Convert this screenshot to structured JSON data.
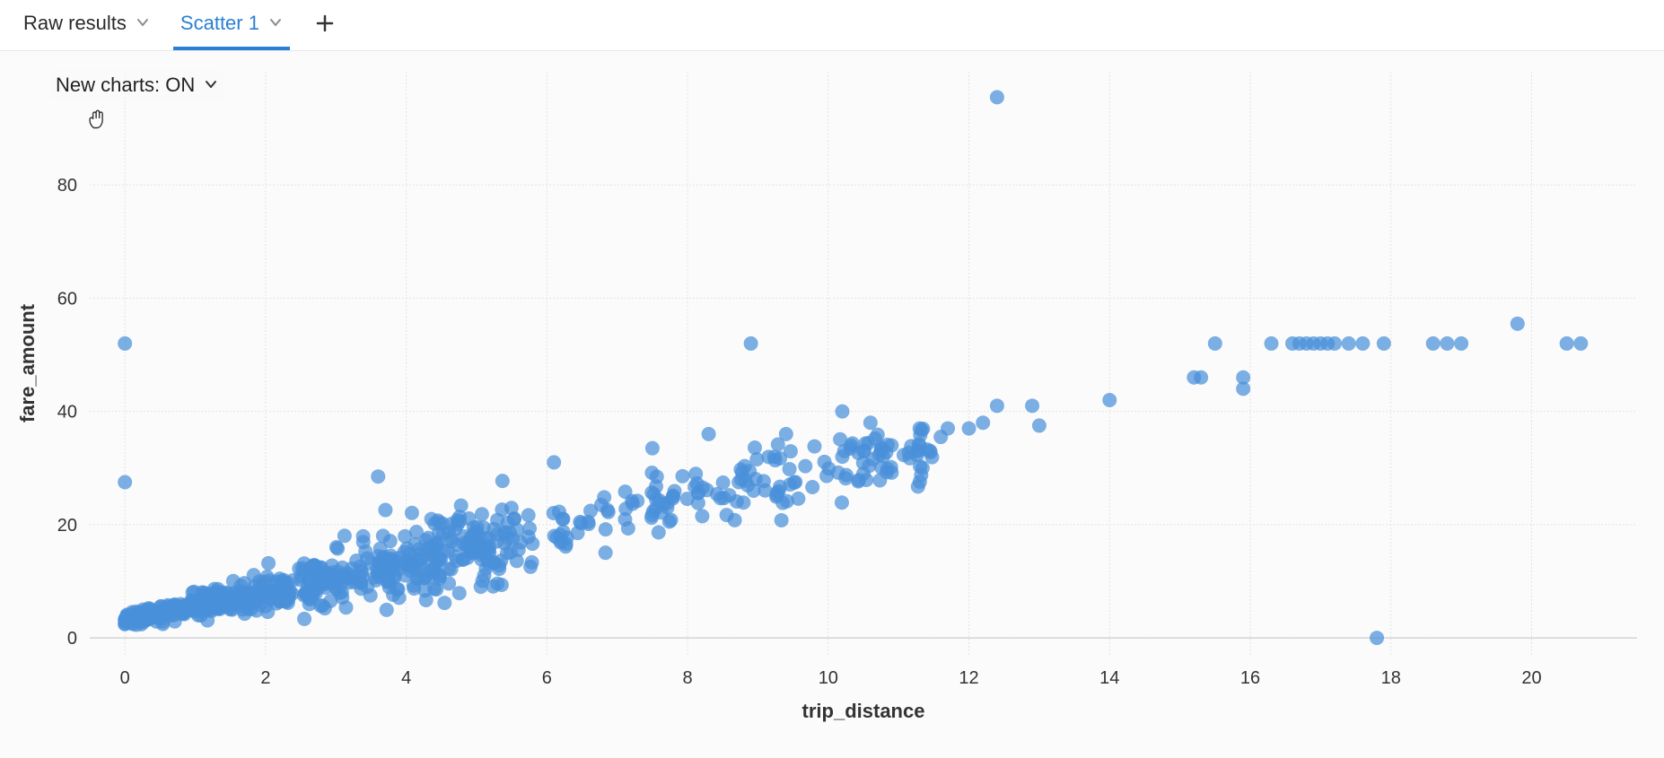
{
  "tabs": {
    "items": [
      {
        "label": "Raw results",
        "active": false
      },
      {
        "label": "Scatter 1",
        "active": true
      }
    ]
  },
  "toggle": {
    "label": "New charts: ON"
  },
  "chart": {
    "type": "scatter",
    "xlabel": "trip_distance",
    "ylabel": "fare_amount",
    "xlim": [
      -0.5,
      21.5
    ],
    "ylim": [
      -3,
      100
    ],
    "xticks": [
      0,
      2,
      4,
      6,
      8,
      10,
      12,
      14,
      16,
      18,
      20
    ],
    "yticks": [
      0,
      20,
      40,
      60,
      80
    ],
    "background_color": "#fbfbfb",
    "grid_color": "#e2e3e5",
    "axis_line_color": "#bfc2c5",
    "marker_color": "#4a90d9",
    "marker_radius": 8,
    "marker_opacity": 0.72,
    "label_fontsize": 22,
    "tick_fontsize": 20,
    "dense_cluster": {
      "n": 600,
      "x_range": [
        0.0,
        5.5
      ],
      "slope": 2.6,
      "intercept": 3.0,
      "noise": 2.5
    },
    "mid_band": {
      "n": 180,
      "x_range": [
        5.5,
        11.5
      ],
      "slope": 2.7,
      "intercept": 3.0,
      "noise": 3.0
    },
    "points_explicit": [
      {
        "x": 0.0,
        "y": 52.0
      },
      {
        "x": 0.0,
        "y": 27.5
      },
      {
        "x": 3.6,
        "y": 28.5
      },
      {
        "x": 6.1,
        "y": 31.0
      },
      {
        "x": 7.5,
        "y": 33.5
      },
      {
        "x": 8.9,
        "y": 52.0
      },
      {
        "x": 8.3,
        "y": 36.0
      },
      {
        "x": 9.4,
        "y": 36.0
      },
      {
        "x": 10.2,
        "y": 40.0
      },
      {
        "x": 10.2,
        "y": 32.0
      },
      {
        "x": 10.6,
        "y": 38.0
      },
      {
        "x": 10.5,
        "y": 29.0
      },
      {
        "x": 10.5,
        "y": 33.0
      },
      {
        "x": 10.9,
        "y": 34.0
      },
      {
        "x": 11.3,
        "y": 34.0
      },
      {
        "x": 11.3,
        "y": 37.0
      },
      {
        "x": 11.6,
        "y": 35.5
      },
      {
        "x": 11.7,
        "y": 37.0
      },
      {
        "x": 12.0,
        "y": 37.0
      },
      {
        "x": 12.2,
        "y": 38.0
      },
      {
        "x": 12.4,
        "y": 41.0
      },
      {
        "x": 12.4,
        "y": 95.5
      },
      {
        "x": 12.9,
        "y": 41.0
      },
      {
        "x": 13.0,
        "y": 37.5
      },
      {
        "x": 14.0,
        "y": 42.0
      },
      {
        "x": 15.2,
        "y": 46.0
      },
      {
        "x": 15.3,
        "y": 46.0
      },
      {
        "x": 15.9,
        "y": 46.0
      },
      {
        "x": 15.9,
        "y": 44.0
      },
      {
        "x": 15.5,
        "y": 52.0
      },
      {
        "x": 16.3,
        "y": 52.0
      },
      {
        "x": 16.6,
        "y": 52.0
      },
      {
        "x": 16.7,
        "y": 52.0
      },
      {
        "x": 16.8,
        "y": 52.0
      },
      {
        "x": 16.9,
        "y": 52.0
      },
      {
        "x": 17.0,
        "y": 52.0
      },
      {
        "x": 17.1,
        "y": 52.0
      },
      {
        "x": 17.2,
        "y": 52.0
      },
      {
        "x": 17.4,
        "y": 52.0
      },
      {
        "x": 17.8,
        "y": 0.0
      },
      {
        "x": 17.6,
        "y": 52.0
      },
      {
        "x": 17.9,
        "y": 52.0
      },
      {
        "x": 18.6,
        "y": 52.0
      },
      {
        "x": 18.8,
        "y": 52.0
      },
      {
        "x": 19.0,
        "y": 52.0
      },
      {
        "x": 19.8,
        "y": 55.5
      },
      {
        "x": 20.5,
        "y": 52.0
      },
      {
        "x": 20.7,
        "y": 52.0
      }
    ]
  }
}
